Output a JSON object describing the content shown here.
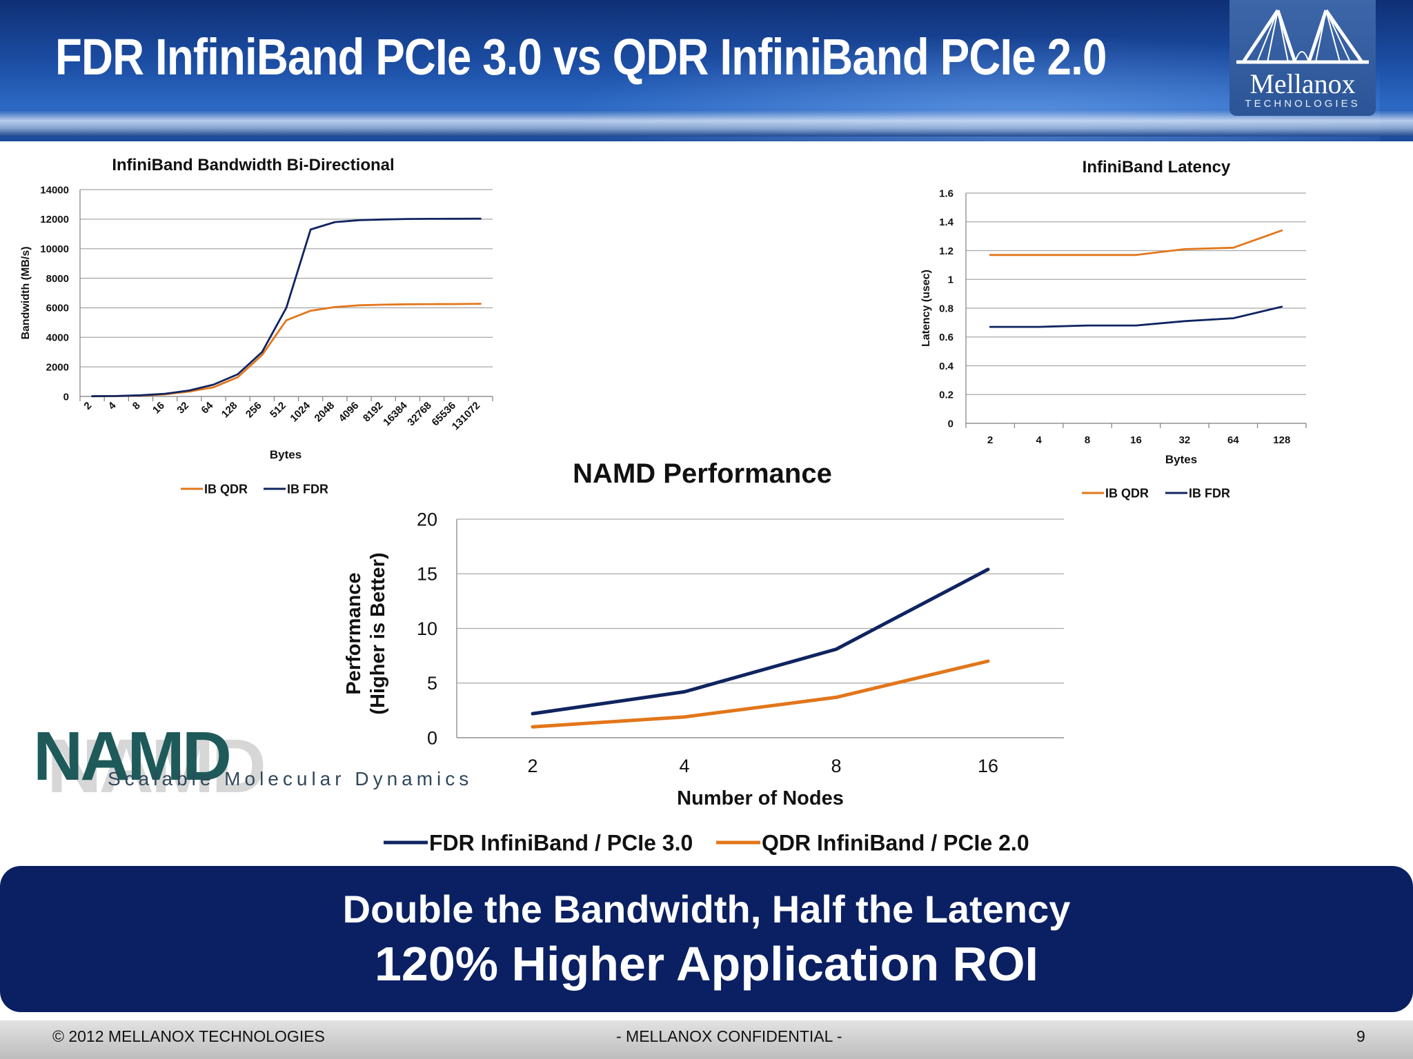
{
  "slide": {
    "title": "FDR InfiniBand PCIe 3.0 vs QDR InfiniBand PCIe 2.0",
    "logo": {
      "name": "Mellanox",
      "sub": "TECHNOLOGIES"
    },
    "banner": {
      "line1": "Double the Bandwidth, Half the Latency",
      "line2": "120% Higher Application ROI"
    },
    "footer": {
      "left": "© 2012  MELLANOX TECHNOLOGIES",
      "center": "-  MELLANOX CONFIDENTIAL -",
      "page": "9"
    },
    "namd_logo": {
      "text": "NAMD",
      "subtitle": "Scalable Molecular Dynamics"
    }
  },
  "colors": {
    "qdr": "#e2761b",
    "fdr": "#0f2460",
    "header": "#1c4ea4",
    "banner": "#0a2062"
  },
  "chart_data": [
    {
      "type": "line",
      "title": "InfiniBand Bandwidth Bi-Directional",
      "xlabel": "Bytes",
      "ylabel": "Bandwidth (MB/s)",
      "ylim": [
        0,
        14000
      ],
      "yticks": [
        "0",
        "2000",
        "4000",
        "6000",
        "8000",
        "10000",
        "12000",
        "14000"
      ],
      "categories": [
        "2",
        "4",
        "8",
        "16",
        "32",
        "64",
        "128",
        "256",
        "512",
        "1024",
        "2048",
        "4096",
        "8192",
        "16384",
        "32768",
        "65536",
        "131072"
      ],
      "series": [
        {
          "name": "IB QDR",
          "color": "#e2761b",
          "values": [
            12,
            25,
            60,
            140,
            330,
            620,
            1300,
            2800,
            5150,
            5800,
            6050,
            6170,
            6210,
            6240,
            6250,
            6255,
            6270
          ]
        },
        {
          "name": "IB FDR",
          "color": "#0f2460",
          "values": [
            15,
            30,
            80,
            180,
            400,
            800,
            1500,
            3000,
            6000,
            11300,
            11800,
            11930,
            11980,
            12010,
            12020,
            12025,
            12030
          ]
        }
      ],
      "grid": true,
      "legend": "bottom"
    },
    {
      "type": "line",
      "title": "InfiniBand Latency",
      "xlabel": "Bytes",
      "ylabel": "Latency (usec)",
      "ylim": [
        0,
        1.6
      ],
      "yticks": [
        "0",
        "0.2",
        "0.4",
        "0.6",
        "0.8",
        "1",
        "1.2",
        "1.4",
        "1.6"
      ],
      "categories": [
        "2",
        "4",
        "8",
        "16",
        "32",
        "64",
        "128"
      ],
      "series": [
        {
          "name": "IB QDR",
          "color": "#e2761b",
          "values": [
            1.17,
            1.17,
            1.17,
            1.17,
            1.21,
            1.22,
            1.34
          ]
        },
        {
          "name": "IB FDR",
          "color": "#0f2460",
          "values": [
            0.67,
            0.67,
            0.68,
            0.68,
            0.71,
            0.73,
            0.81
          ]
        }
      ],
      "grid": true,
      "legend": "bottom"
    },
    {
      "type": "line",
      "title": "NAMD Performance",
      "xlabel": "Number of Nodes",
      "ylabel_line1": "Performance",
      "ylabel_line2": "(Higher is Better)",
      "ylim": [
        0,
        20
      ],
      "yticks": [
        "0",
        "5",
        "10",
        "15",
        "20"
      ],
      "categories": [
        "2",
        "4",
        "8",
        "16"
      ],
      "series": [
        {
          "name": "FDR InfiniBand / PCIe 3.0",
          "color": "#0f2460",
          "values": [
            2.2,
            4.2,
            8.1,
            15.4
          ]
        },
        {
          "name": "QDR InfiniBand / PCIe 2.0",
          "color": "#e2761b",
          "values": [
            1.0,
            1.9,
            3.7,
            7.0
          ]
        }
      ],
      "grid": true,
      "legend": "bottom"
    }
  ]
}
